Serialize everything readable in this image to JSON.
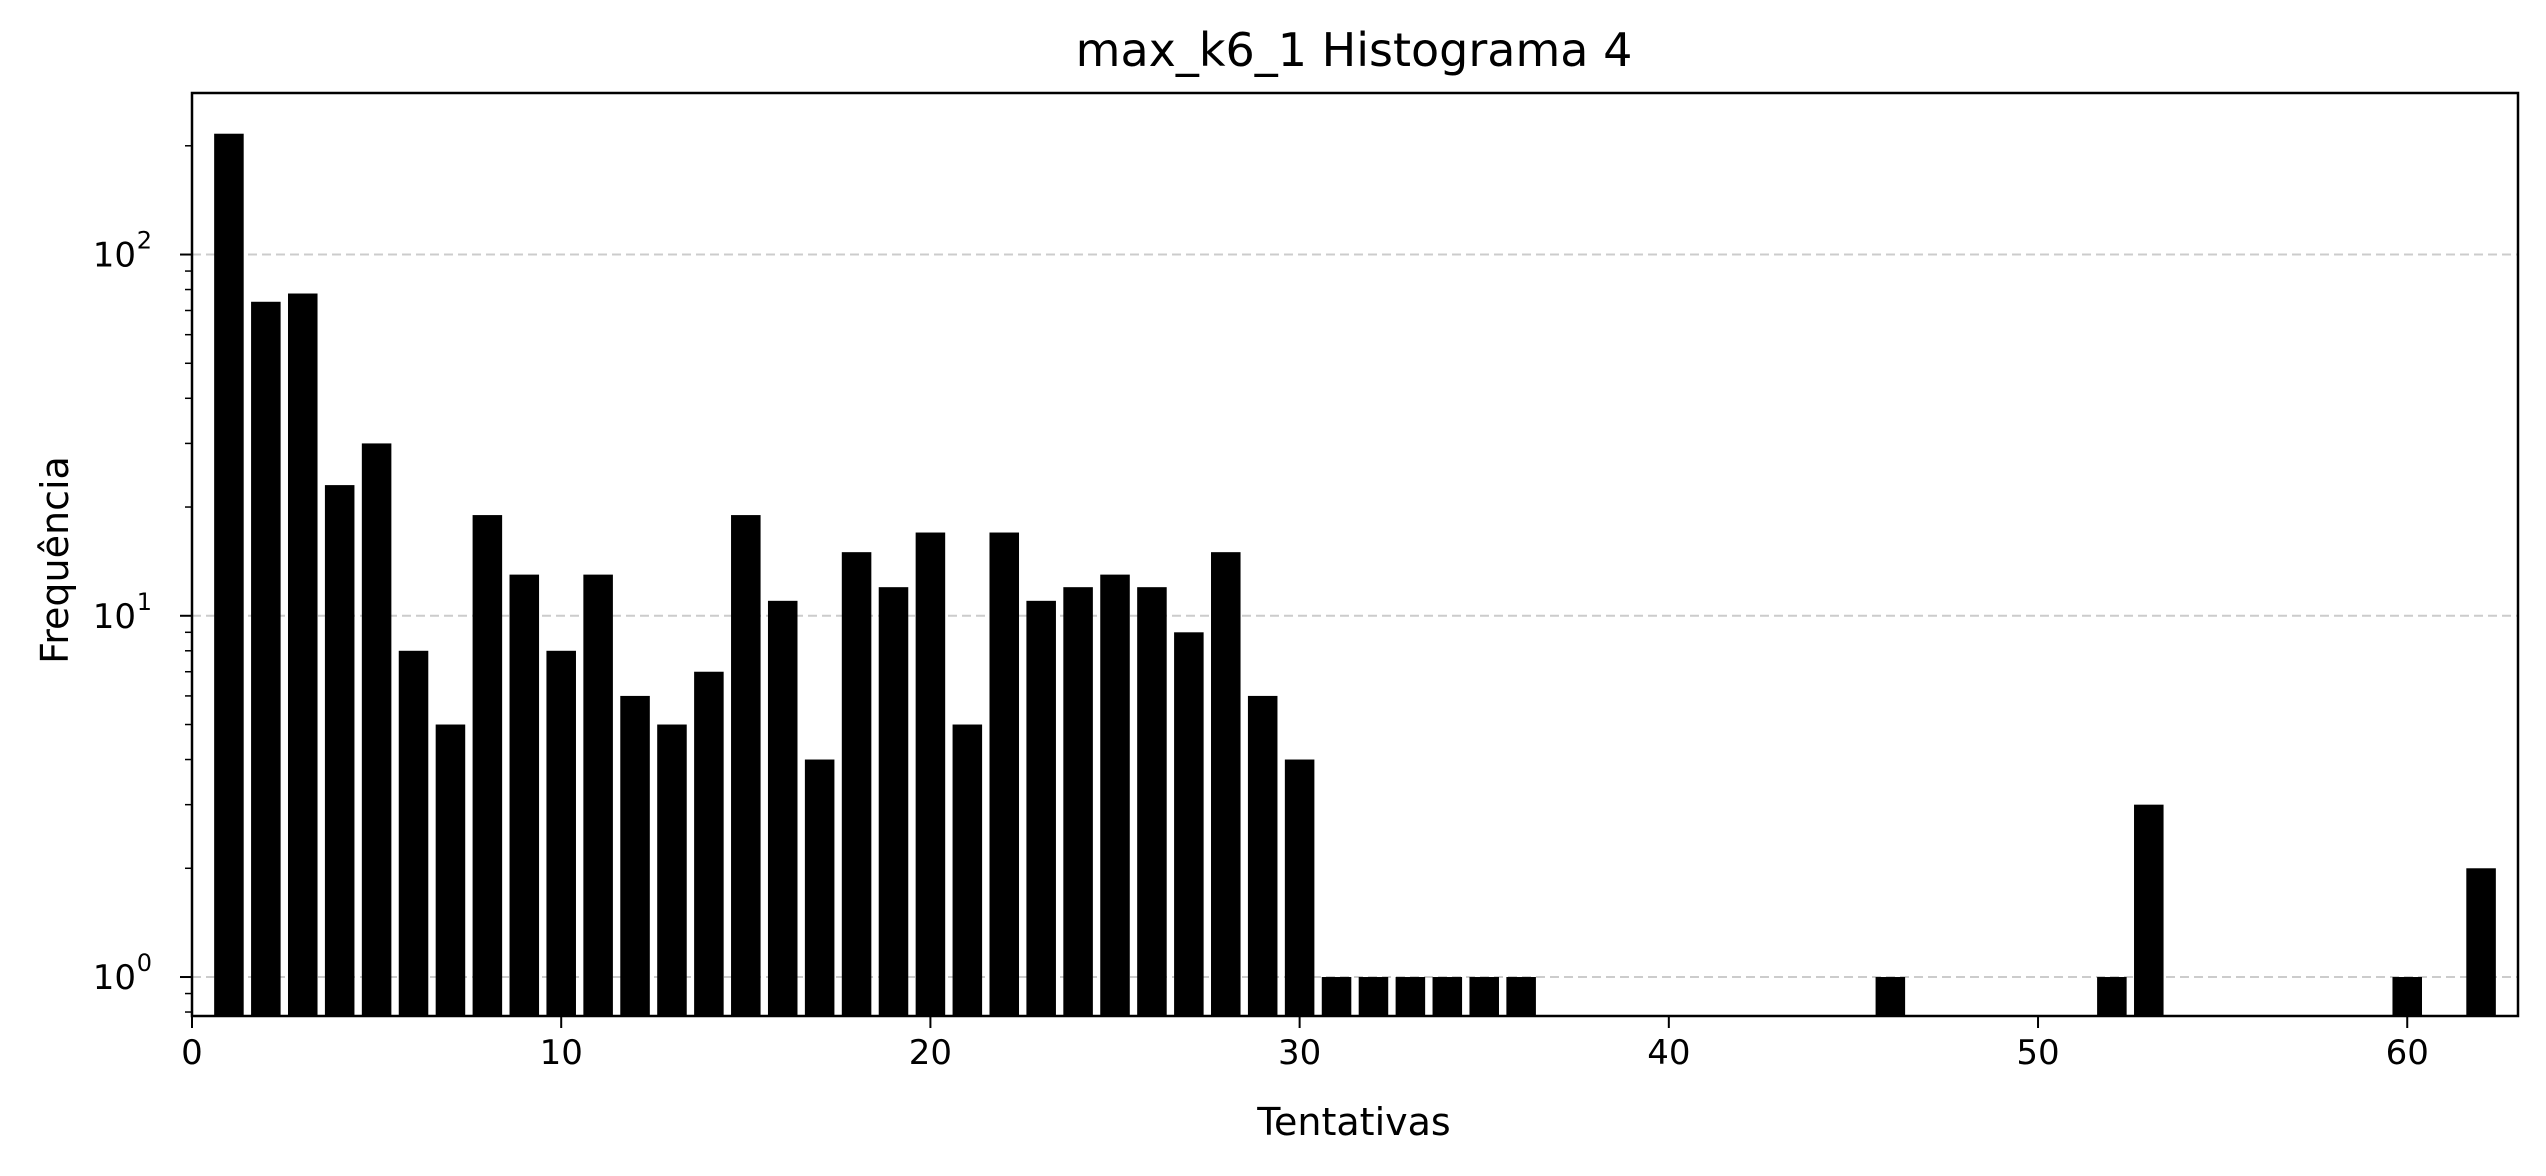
{
  "chart_data": {
    "type": "bar",
    "title": "max_k6_1 Histograma 4",
    "xlabel": "Tentativas",
    "ylabel": "Frequência",
    "yscale": "log",
    "grid": "y",
    "xlim": [
      0,
      63
    ],
    "ylim": [
      0.78,
      280
    ],
    "xticks": [
      0,
      10,
      20,
      30,
      40,
      50,
      60
    ],
    "xtick_labels": [
      "0",
      "10",
      "20",
      "30",
      "40",
      "50",
      "60"
    ],
    "yticks": [
      1,
      10,
      100
    ],
    "ytick_labels": [
      {
        "base": "10",
        "exp": "0"
      },
      {
        "base": "10",
        "exp": "1"
      },
      {
        "base": "10",
        "exp": "2"
      }
    ],
    "x": [
      1,
      2,
      3,
      4,
      5,
      6,
      7,
      8,
      9,
      10,
      11,
      12,
      13,
      14,
      15,
      16,
      17,
      18,
      19,
      20,
      21,
      22,
      23,
      24,
      25,
      26,
      27,
      28,
      29,
      30,
      31,
      32,
      33,
      34,
      35,
      36,
      46,
      52,
      53,
      60,
      62
    ],
    "values": [
      216,
      74,
      78,
      23,
      30,
      8,
      5,
      19,
      13,
      8,
      13,
      6,
      5,
      7,
      19,
      11,
      4,
      15,
      12,
      17,
      5,
      17,
      11,
      12,
      13,
      12,
      9,
      15,
      6,
      4,
      1,
      1,
      1,
      1,
      1,
      1,
      1,
      1,
      3,
      1,
      2
    ],
    "bar_color": "#000000",
    "grid_color": "#cccccc"
  }
}
